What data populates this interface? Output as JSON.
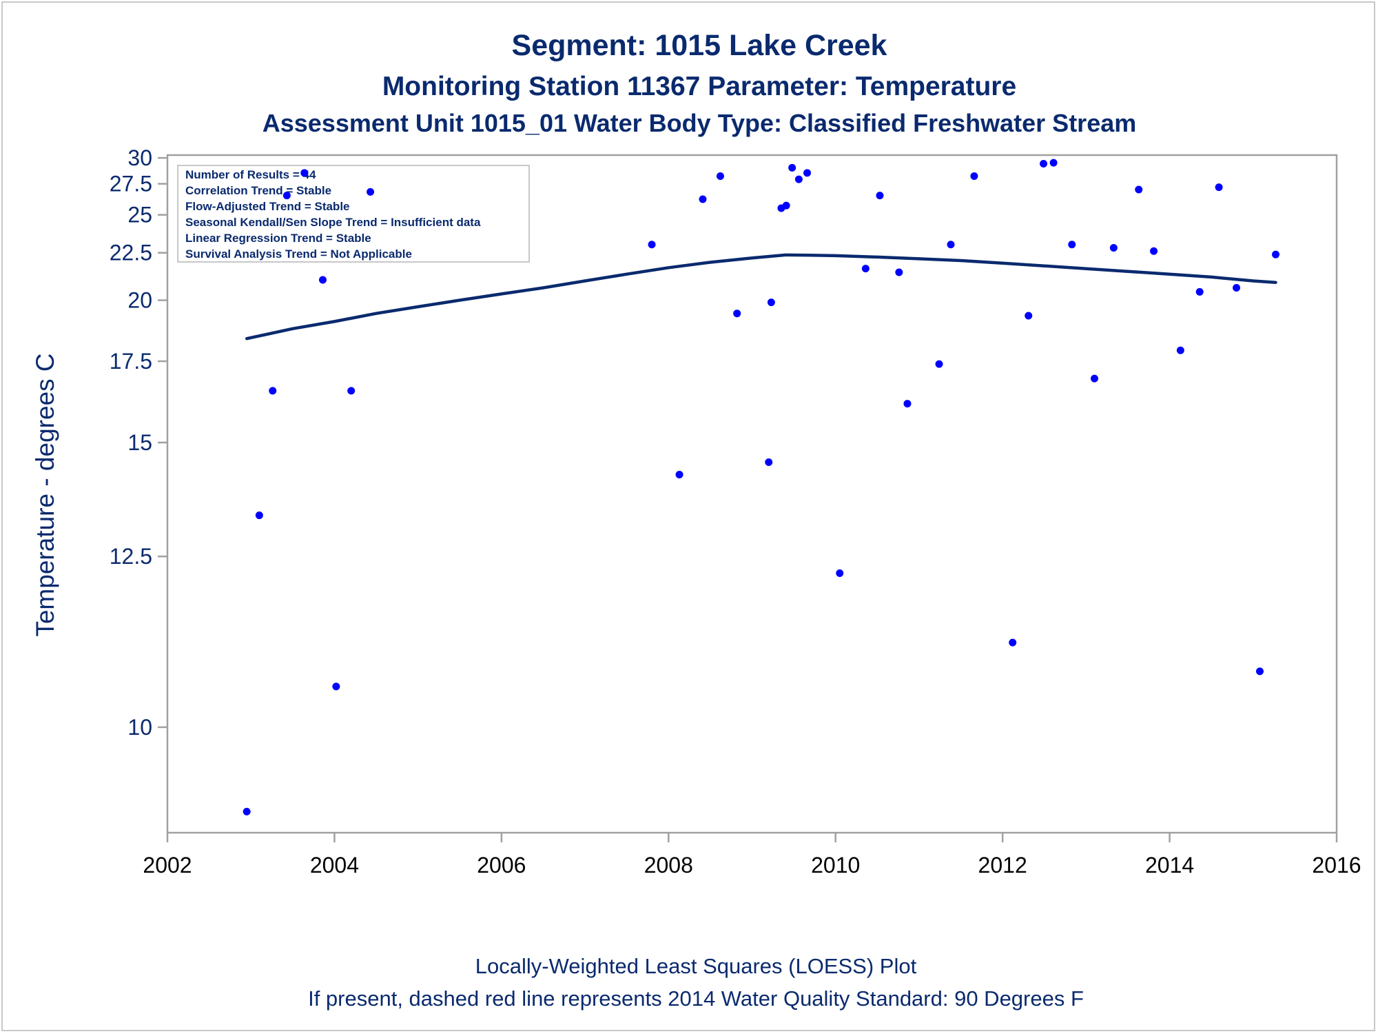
{
  "titles": {
    "line1": "Segment: 1015  Lake Creek",
    "line2": "Monitoring Station 11367 Parameter: Temperature",
    "line3": "Assessment Unit 1015_01   Water Body Type: Classified Freshwater Stream"
  },
  "footnotes": {
    "line1": "Locally-Weighted Least Squares (LOESS) Plot",
    "line2": "If present, dashed red line represents 2014 Water Quality Standard: 90   Degrees F"
  },
  "inset": [
    "Number of Results = 44",
    "Correlation Trend = Stable",
    "Flow-Adjusted Trend = Stable",
    "Seasonal Kendall/Sen Slope Trend = Insufficient data",
    "Linear Regression Trend = Stable",
    "Survival Analysis Trend = Not Applicable"
  ],
  "colors": {
    "points": "#0000ff",
    "loess": "#0a2a6e",
    "axis": "#a0a0a0",
    "text": "#0a2a6e"
  },
  "chart_data": {
    "type": "scatter",
    "ylabel": "Temperature - degrees C",
    "xlabel": "",
    "xlim": [
      2002,
      2016
    ],
    "ylim": [
      8.9,
      30.3
    ],
    "y_scale": "reciprocal",
    "x_ticks": [
      2002,
      2004,
      2006,
      2008,
      2010,
      2012,
      2014,
      2016
    ],
    "x_tick_labels": [
      "2002",
      "2004",
      "2006",
      "2008",
      "2010",
      "2012",
      "2014",
      "2016"
    ],
    "y_ticks": [
      10,
      12.5,
      15,
      17.5,
      20,
      22.5,
      25,
      27.5,
      30
    ],
    "y_tick_labels": [
      "10",
      "12.5",
      "15",
      "17.5",
      "20",
      "22.5",
      "25",
      "27.5",
      "30"
    ],
    "points": [
      {
        "x": 2002.95,
        "y": 9.1
      },
      {
        "x": 2003.1,
        "y": 13.3
      },
      {
        "x": 2003.26,
        "y": 16.5
      },
      {
        "x": 2003.43,
        "y": 26.5
      },
      {
        "x": 2003.64,
        "y": 28.5
      },
      {
        "x": 2003.86,
        "y": 21.0
      },
      {
        "x": 2004.02,
        "y": 10.5
      },
      {
        "x": 2004.2,
        "y": 16.5
      },
      {
        "x": 2004.43,
        "y": 26.8
      },
      {
        "x": 2007.8,
        "y": 23.0
      },
      {
        "x": 2008.13,
        "y": 14.2
      },
      {
        "x": 2008.41,
        "y": 26.2
      },
      {
        "x": 2008.62,
        "y": 28.2
      },
      {
        "x": 2008.82,
        "y": 19.4
      },
      {
        "x": 2009.2,
        "y": 14.5
      },
      {
        "x": 2009.23,
        "y": 19.9
      },
      {
        "x": 2009.35,
        "y": 25.5
      },
      {
        "x": 2009.41,
        "y": 25.7
      },
      {
        "x": 2009.48,
        "y": 29.0
      },
      {
        "x": 2009.56,
        "y": 27.9
      },
      {
        "x": 2009.66,
        "y": 28.5
      },
      {
        "x": 2010.05,
        "y": 12.2
      },
      {
        "x": 2010.36,
        "y": 21.6
      },
      {
        "x": 2010.53,
        "y": 26.5
      },
      {
        "x": 2010.76,
        "y": 21.4
      },
      {
        "x": 2010.86,
        "y": 16.1
      },
      {
        "x": 2011.24,
        "y": 17.4
      },
      {
        "x": 2011.38,
        "y": 23.0
      },
      {
        "x": 2011.66,
        "y": 28.2
      },
      {
        "x": 2012.12,
        "y": 11.1
      },
      {
        "x": 2012.31,
        "y": 19.3
      },
      {
        "x": 2012.49,
        "y": 29.4
      },
      {
        "x": 2012.61,
        "y": 29.5
      },
      {
        "x": 2012.83,
        "y": 23.0
      },
      {
        "x": 2013.1,
        "y": 16.9
      },
      {
        "x": 2013.33,
        "y": 22.8
      },
      {
        "x": 2013.63,
        "y": 27.0
      },
      {
        "x": 2013.81,
        "y": 22.6
      },
      {
        "x": 2014.13,
        "y": 17.9
      },
      {
        "x": 2014.36,
        "y": 20.4
      },
      {
        "x": 2014.59,
        "y": 27.2
      },
      {
        "x": 2014.8,
        "y": 20.6
      },
      {
        "x": 2015.08,
        "y": 10.7
      },
      {
        "x": 2015.27,
        "y": 22.4
      }
    ],
    "loess_line": [
      {
        "x": 2002.95,
        "y": 18.35
      },
      {
        "x": 2003.5,
        "y": 18.75
      },
      {
        "x": 2004.0,
        "y": 19.05
      },
      {
        "x": 2004.5,
        "y": 19.4
      },
      {
        "x": 2005.0,
        "y": 19.7
      },
      {
        "x": 2005.5,
        "y": 20.0
      },
      {
        "x": 2006.0,
        "y": 20.3
      },
      {
        "x": 2006.5,
        "y": 20.6
      },
      {
        "x": 2007.0,
        "y": 20.95
      },
      {
        "x": 2007.5,
        "y": 21.3
      },
      {
        "x": 2008.0,
        "y": 21.65
      },
      {
        "x": 2008.5,
        "y": 21.95
      },
      {
        "x": 2009.0,
        "y": 22.2
      },
      {
        "x": 2009.4,
        "y": 22.37
      },
      {
        "x": 2009.7,
        "y": 22.36
      },
      {
        "x": 2010.0,
        "y": 22.33
      },
      {
        "x": 2010.5,
        "y": 22.25
      },
      {
        "x": 2011.0,
        "y": 22.15
      },
      {
        "x": 2011.5,
        "y": 22.05
      },
      {
        "x": 2012.0,
        "y": 21.9
      },
      {
        "x": 2012.5,
        "y": 21.75
      },
      {
        "x": 2013.0,
        "y": 21.6
      },
      {
        "x": 2013.5,
        "y": 21.45
      },
      {
        "x": 2014.0,
        "y": 21.3
      },
      {
        "x": 2014.5,
        "y": 21.15
      },
      {
        "x": 2015.0,
        "y": 20.95
      },
      {
        "x": 2015.27,
        "y": 20.87
      }
    ]
  }
}
